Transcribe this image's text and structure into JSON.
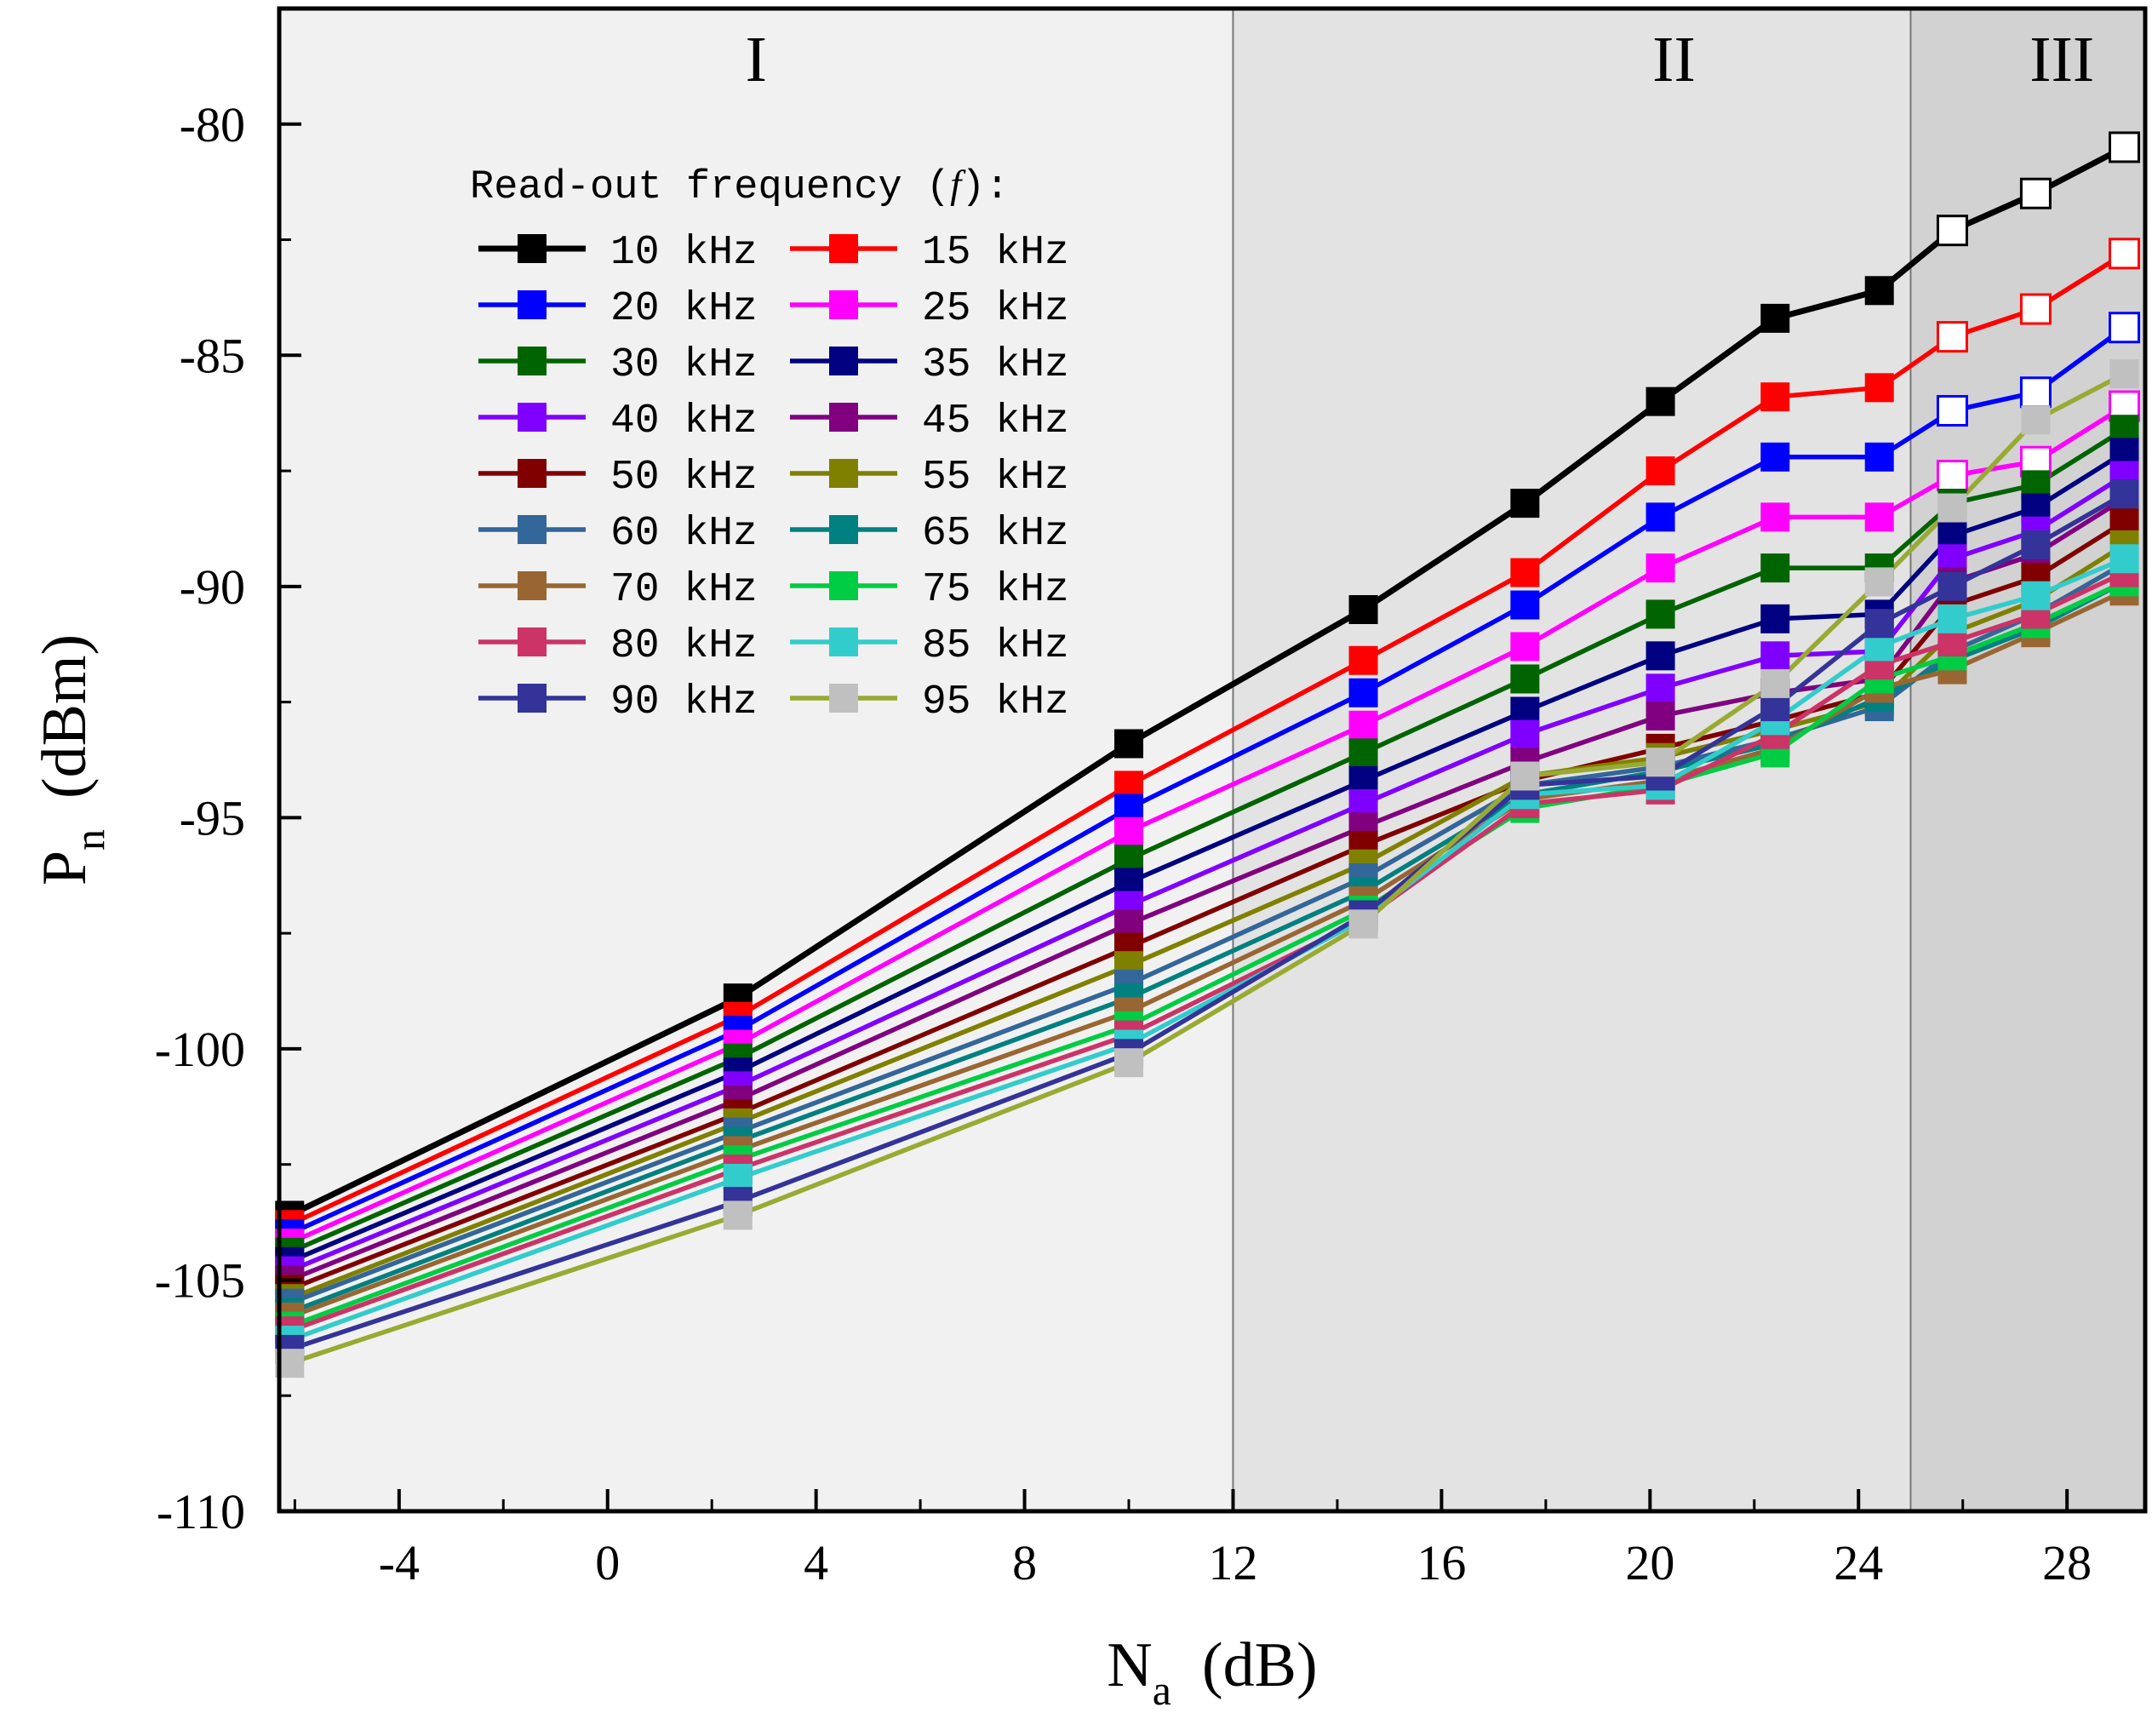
{
  "chart_data": {
    "type": "line",
    "xlabel_main": "N",
    "xlabel_sub": "a",
    "xlabel_unit": "(dB)",
    "ylabel_main": "P",
    "ylabel_sub": "n",
    "ylabel_unit": "(dBm)",
    "xlim": [
      -6.3,
      29.5
    ],
    "ylim": [
      -110,
      -77.5
    ],
    "xticks": [
      -4,
      0,
      4,
      8,
      12,
      16,
      20,
      24,
      28
    ],
    "xtick_labels": [
      "-4",
      "0",
      "4",
      "8",
      "12",
      "16",
      "20",
      "24",
      "28"
    ],
    "yticks": [
      -110,
      -105,
      -100,
      -95,
      -90,
      -85,
      -80
    ],
    "ytick_labels": [
      "-110",
      "-105",
      "-100",
      "-95",
      "-90",
      "-85",
      "-80"
    ],
    "regions": [
      {
        "label": "I",
        "x0": -6.3,
        "x1": 12,
        "color": "#f1f1f1"
      },
      {
        "label": "II",
        "x0": 12,
        "x1": 25,
        "color": "#e3e3e3"
      },
      {
        "label": "III",
        "x0": 25,
        "x1": 29.5,
        "color": "#d2d2d2"
      }
    ],
    "legend_title": "Read-out frequency (",
    "legend_title_var": "f",
    "legend_title_end": "):",
    "legend_position": "upper-left",
    "open_marker_from_x": 25.8,
    "x": [
      -6.1,
      2.5,
      10.0,
      14.5,
      17.6,
      20.2,
      22.4,
      24.4,
      25.8,
      27.4,
      29.1
    ],
    "series": [
      {
        "name": "10 kHz",
        "color": "#000000",
        "values": [
          -103.6,
          -98.9,
          -93.4,
          -90.5,
          -88.2,
          -86.0,
          -84.2,
          -83.6,
          -82.3,
          -81.5,
          -80.5
        ]
      },
      {
        "name": "15 kHz",
        "color": "#ff0000",
        "values": [
          -103.8,
          -99.3,
          -94.3,
          -91.6,
          -89.7,
          -87.5,
          -85.9,
          -85.7,
          -84.6,
          -84.0,
          -82.8
        ]
      },
      {
        "name": "20 kHz",
        "color": "#0000ff",
        "values": [
          -104.0,
          -99.6,
          -94.8,
          -92.3,
          -90.4,
          -88.5,
          -87.2,
          -87.2,
          -86.2,
          -85.8,
          -84.4
        ]
      },
      {
        "name": "25 kHz",
        "color": "#ff00ff",
        "values": [
          -104.2,
          -99.9,
          -95.3,
          -93.0,
          -91.3,
          -89.6,
          -88.5,
          -88.5,
          -87.6,
          -87.3,
          -86.1
        ]
      },
      {
        "name": "30 kHz",
        "color": "#006400",
        "values": [
          -104.4,
          -100.2,
          -95.9,
          -93.6,
          -92.0,
          -90.6,
          -89.6,
          -89.6,
          -88.2,
          -87.8,
          -86.6
        ]
      },
      {
        "name": "35 kHz",
        "color": "#000080",
        "values": [
          -104.6,
          -100.5,
          -96.4,
          -94.2,
          -92.7,
          -91.5,
          -90.7,
          -90.6,
          -88.9,
          -88.3,
          -87.1
        ]
      },
      {
        "name": "40 kHz",
        "color": "#8000ff",
        "values": [
          -104.8,
          -100.8,
          -96.9,
          -94.7,
          -93.2,
          -92.2,
          -91.5,
          -91.4,
          -89.4,
          -88.8,
          -87.6
        ]
      },
      {
        "name": "45 kHz",
        "color": "#800080",
        "values": [
          -105.0,
          -101.1,
          -97.3,
          -95.2,
          -93.8,
          -92.8,
          -92.3,
          -92.0,
          -89.9,
          -89.3,
          -88.1
        ]
      },
      {
        "name": "50 kHz",
        "color": "#800000",
        "values": [
          -105.2,
          -101.4,
          -97.8,
          -95.6,
          -94.2,
          -93.5,
          -92.9,
          -92.3,
          -90.4,
          -89.8,
          -88.6
        ]
      },
      {
        "name": "55 kHz",
        "color": "#808000",
        "values": [
          -105.4,
          -101.6,
          -98.2,
          -96.0,
          -94.1,
          -93.7,
          -93.1,
          -92.5,
          -91.0,
          -90.3,
          -89.1
        ]
      },
      {
        "name": "60 kHz",
        "color": "#336699",
        "values": [
          -105.5,
          -101.8,
          -98.6,
          -96.3,
          -94.3,
          -93.9,
          -93.3,
          -92.6,
          -91.4,
          -90.6,
          -89.5
        ]
      },
      {
        "name": "65 kHz",
        "color": "#008080",
        "values": [
          -105.7,
          -102.0,
          -98.9,
          -96.6,
          -94.5,
          -94.0,
          -93.4,
          -92.4,
          -91.6,
          -90.9,
          -89.9
        ]
      },
      {
        "name": "70 kHz",
        "color": "#996633",
        "values": [
          -105.8,
          -102.2,
          -99.2,
          -96.8,
          -94.6,
          -94.2,
          -93.5,
          -92.2,
          -91.8,
          -91.0,
          -90.1
        ]
      },
      {
        "name": "75 kHz",
        "color": "#00cc44",
        "values": [
          -106.0,
          -102.4,
          -99.5,
          -97.0,
          -94.8,
          -94.3,
          -93.6,
          -92.0,
          -91.5,
          -90.8,
          -89.9
        ]
      },
      {
        "name": "80 kHz",
        "color": "#cc3366",
        "values": [
          -106.1,
          -102.6,
          -99.7,
          -97.2,
          -94.7,
          -94.4,
          -93.2,
          -91.7,
          -91.2,
          -90.6,
          -89.7
        ]
      },
      {
        "name": "85 kHz",
        "color": "#33cccc",
        "values": [
          -106.3,
          -102.8,
          -99.9,
          -97.2,
          -94.5,
          -94.3,
          -92.9,
          -91.3,
          -90.7,
          -90.2,
          -89.4
        ]
      },
      {
        "name": "90 kHz",
        "color": "#333399",
        "values": [
          -106.5,
          -103.3,
          -100.1,
          -97.1,
          -94.3,
          -94.1,
          -92.6,
          -90.8,
          -90.0,
          -89.1,
          -88.0
        ]
      },
      {
        "name": "95 kHz",
        "color": "#99aa33",
        "values": [
          -106.8,
          -103.6,
          -100.3,
          -97.3,
          -94.1,
          -93.8,
          -92.1,
          -89.9,
          -88.3,
          -86.4,
          -85.4
        ]
      }
    ],
    "marker_fill_override": {
      "95 kHz": "#c0c0c0"
    }
  }
}
